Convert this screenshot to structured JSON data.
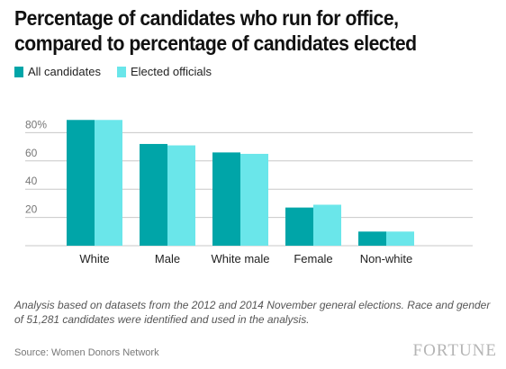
{
  "chart_data": {
    "type": "bar",
    "title": "Percentage of candidates who run for office, compared to percentage of candidates elected",
    "categories": [
      "White",
      "Male",
      "White male",
      "Female",
      "Non-white"
    ],
    "series": [
      {
        "name": "All candidates",
        "values": [
          89,
          72,
          66,
          27,
          10
        ],
        "color": "#00a5a8"
      },
      {
        "name": "Elected officials",
        "values": [
          89,
          71,
          65,
          29,
          10
        ],
        "color": "#6ae6ea"
      }
    ],
    "ylim": [
      0,
      100
    ],
    "yticks": [
      20,
      40,
      60,
      80
    ],
    "ytick_labels": [
      "20",
      "40",
      "60",
      "80%"
    ],
    "grid": true,
    "legend_position": "top-left",
    "xlabel": "",
    "ylabel": ""
  },
  "note": "Analysis based on datasets from the 2012 and 2014 November general elections. Race and gender of 51,281 candidates were identified and used in the analysis.",
  "source": "Source: Women Donors Network",
  "brand": "FORTUNE"
}
